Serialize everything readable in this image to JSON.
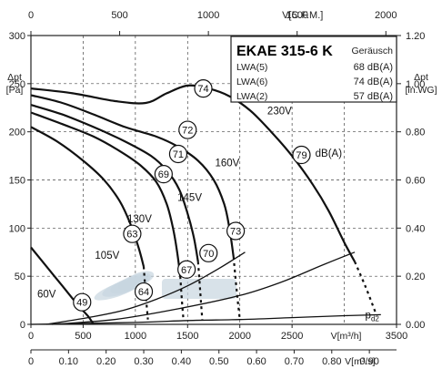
{
  "chart_data": {
    "type": "line",
    "title": "EKAE 315-6 K",
    "legend_box": {
      "title": "EKAE 315-6 K",
      "subtitle": "Geräusch",
      "rows": [
        {
          "label": "LWA(5)",
          "value": "68 dB(A)"
        },
        {
          "label": "LWA(6)",
          "value": "74 dB(A)"
        },
        {
          "label": "LWA(2)",
          "value": "57 dB(A)"
        }
      ]
    },
    "x_bottom": {
      "label": "V[m³/h]",
      "range": [
        0,
        3500
      ],
      "ticks": [
        "0",
        "500",
        "1000",
        "1500",
        "2000",
        "2500",
        "3500"
      ]
    },
    "x_top": {
      "label": "V[C.F.M.]",
      "range": [
        0,
        2000
      ],
      "ticks": [
        "0",
        "500",
        "1000",
        "1500",
        "2000"
      ]
    },
    "x_bottom2": {
      "label": "V[m³/s]",
      "range": [
        0,
        0.9
      ],
      "ticks": [
        "0",
        "0.10",
        "0.20",
        "0.30",
        "0.40",
        "0.50",
        "0.60",
        "0.70",
        "0.80",
        "0.90"
      ]
    },
    "y_left": {
      "label": "Δpt",
      "unit": "[Pa]",
      "range": [
        0,
        300
      ],
      "ticks": [
        "0",
        "50",
        "100",
        "150",
        "200",
        "250",
        "300"
      ]
    },
    "y_right": {
      "label": "Δpt",
      "unit": "[in.WG]",
      "range": [
        0,
        1.2
      ],
      "ticks": [
        "0.00",
        "0.20",
        "0.40",
        "0.60",
        "0.80",
        "1.00",
        "1.20"
      ]
    },
    "grid": true,
    "series": [
      {
        "name": "230V",
        "points": [
          [
            0,
            245
          ],
          [
            400,
            240
          ],
          [
            800,
            232
          ],
          [
            1100,
            230
          ],
          [
            1300,
            240
          ],
          [
            1500,
            248
          ],
          [
            1700,
            245
          ],
          [
            1900,
            237
          ],
          [
            2100,
            222
          ],
          [
            2300,
            200
          ],
          [
            2500,
            175
          ],
          [
            2700,
            145
          ],
          [
            2850,
            118
          ],
          [
            3000,
            85
          ],
          [
            3100,
            65
          ]
        ],
        "dashed_tail": [
          [
            3100,
            65
          ],
          [
            3200,
            40
          ],
          [
            3300,
            12
          ]
        ]
      },
      {
        "name": "160V",
        "points": [
          [
            0,
            238
          ],
          [
            300,
            230
          ],
          [
            600,
            218
          ],
          [
            900,
            205
          ],
          [
            1200,
            195
          ],
          [
            1400,
            185
          ],
          [
            1600,
            170
          ],
          [
            1750,
            150
          ],
          [
            1850,
            125
          ],
          [
            1900,
            100
          ],
          [
            1940,
            70
          ]
        ],
        "dashed_tail": [
          [
            1940,
            70
          ],
          [
            1970,
            35
          ],
          [
            2000,
            5
          ]
        ]
      },
      {
        "name": "145V",
        "points": [
          [
            0,
            228
          ],
          [
            300,
            218
          ],
          [
            600,
            205
          ],
          [
            900,
            190
          ],
          [
            1150,
            175
          ],
          [
            1300,
            160
          ],
          [
            1420,
            140
          ],
          [
            1500,
            115
          ],
          [
            1560,
            90
          ],
          [
            1600,
            65
          ]
        ],
        "dashed_tail": [
          [
            1600,
            65
          ],
          [
            1620,
            35
          ],
          [
            1640,
            5
          ]
        ]
      },
      {
        "name": "130V",
        "points": [
          [
            0,
            220
          ],
          [
            300,
            208
          ],
          [
            600,
            195
          ],
          [
            850,
            180
          ],
          [
            1050,
            165
          ],
          [
            1200,
            148
          ],
          [
            1300,
            125
          ],
          [
            1360,
            100
          ],
          [
            1400,
            75
          ],
          [
            1430,
            50
          ]
        ],
        "dashed_tail": [
          [
            1430,
            50
          ],
          [
            1445,
            25
          ],
          [
            1460,
            5
          ]
        ]
      },
      {
        "name": "105V",
        "points": [
          [
            0,
            205
          ],
          [
            250,
            190
          ],
          [
            500,
            170
          ],
          [
            700,
            150
          ],
          [
            850,
            128
          ],
          [
            950,
            105
          ],
          [
            1030,
            80
          ],
          [
            1080,
            60
          ]
        ],
        "dashed_tail": [
          [
            1080,
            60
          ],
          [
            1100,
            30
          ],
          [
            1120,
            5
          ]
        ]
      },
      {
        "name": "60V",
        "points": [
          [
            0,
            80
          ],
          [
            150,
            60
          ],
          [
            300,
            40
          ],
          [
            450,
            20
          ],
          [
            550,
            8
          ],
          [
            600,
            0
          ]
        ],
        "dashed_tail": []
      }
    ],
    "system_curves": [
      {
        "name": "Pd2",
        "points": [
          [
            0,
            0
          ],
          [
            1000,
            2
          ],
          [
            1500,
            4
          ],
          [
            2000,
            5
          ],
          [
            2500,
            7
          ],
          [
            3000,
            9
          ],
          [
            3350,
            10
          ]
        ]
      },
      {
        "name": "sys_a",
        "points": [
          [
            200,
            0
          ],
          [
            800,
            5
          ],
          [
            1400,
            16
          ],
          [
            2000,
            30
          ],
          [
            2400,
            44
          ],
          [
            2800,
            62
          ],
          [
            3100,
            75
          ]
        ]
      },
      {
        "name": "sys_b",
        "points": [
          [
            150,
            0
          ],
          [
            600,
            8
          ],
          [
            900,
            15
          ],
          [
            1200,
            26
          ],
          [
            1500,
            40
          ],
          [
            1800,
            58
          ],
          [
            2050,
            75
          ]
        ]
      }
    ],
    "dB_markers": [
      {
        "label": "74",
        "x": 1650,
        "y": 245
      },
      {
        "label": "72",
        "x": 1500,
        "y": 202
      },
      {
        "label": "71",
        "x": 1410,
        "y": 177
      },
      {
        "label": "69",
        "x": 1270,
        "y": 156
      },
      {
        "label": "63",
        "x": 970,
        "y": 94
      },
      {
        "label": "64",
        "x": 1080,
        "y": 34
      },
      {
        "label": "49",
        "x": 490,
        "y": 23
      },
      {
        "label": "67",
        "x": 1490,
        "y": 57
      },
      {
        "label": "70",
        "x": 1700,
        "y": 74
      },
      {
        "label": "73",
        "x": 1960,
        "y": 97
      },
      {
        "label": "79",
        "x": 2590,
        "y": 176
      }
    ],
    "annotations": [
      {
        "text": "230V",
        "x": 2380,
        "y": 218
      },
      {
        "text": "dB(A)",
        "x": 2850,
        "y": 174
      },
      {
        "text": "160V",
        "x": 1880,
        "y": 164
      },
      {
        "text": "145V",
        "x": 1520,
        "y": 128
      },
      {
        "text": "130V",
        "x": 1040,
        "y": 106
      },
      {
        "text": "105V",
        "x": 730,
        "y": 68
      },
      {
        "text": "60V",
        "x": 150,
        "y": 28
      },
      {
        "text": "pd2",
        "x": 3200,
        "y": 6
      }
    ]
  }
}
